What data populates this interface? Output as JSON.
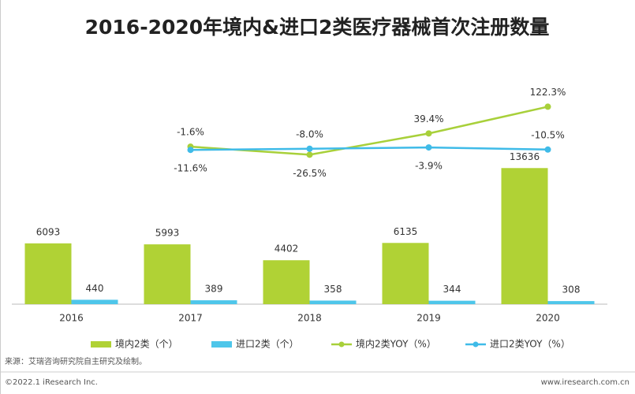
{
  "chart_data": {
    "type": "combo",
    "title": "2016-2020年境内&进口2类医疗器械首次注册数量",
    "categories": [
      "2016",
      "2017",
      "2018",
      "2019",
      "2020"
    ],
    "series": [
      {
        "name": "境内2类（个）",
        "type": "bar",
        "color": "#b0d235",
        "values": [
          6093,
          5993,
          4402,
          6135,
          13636
        ]
      },
      {
        "name": "进口2类（个）",
        "type": "bar",
        "color": "#4ec6ea",
        "values": [
          440,
          389,
          358,
          344,
          308
        ]
      },
      {
        "name": "境内2类YOY（%）",
        "type": "line",
        "axis": "y2",
        "color": "#a8d03a",
        "values": [
          null,
          -1.6,
          -26.5,
          39.4,
          122.3
        ],
        "value_labels": [
          null,
          "-1.6%",
          "-26.5%",
          "39.4%",
          "122.3%"
        ]
      },
      {
        "name": "进口2类YOY（%）",
        "type": "line",
        "axis": "y2",
        "color": "#3fbbe8",
        "values": [
          null,
          -11.6,
          -8.0,
          -3.9,
          -10.5
        ],
        "value_labels": [
          null,
          "-11.6%",
          "-8.0%",
          "-3.9%",
          "-10.5%"
        ]
      }
    ],
    "ylim": [
      0,
      21000
    ],
    "y2lim": [
      -490,
      160
    ]
  },
  "footer": {
    "source": "来源：艾瑞咨询研究院自主研究及绘制。",
    "copyright": "©2022.1 iResearch Inc.",
    "website": "www.iresearch.com.cn"
  }
}
